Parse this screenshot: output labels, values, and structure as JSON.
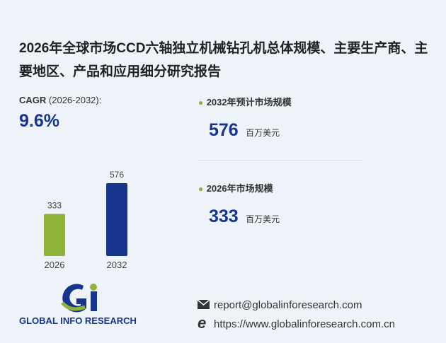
{
  "title": "2026年全球市场CCD六轴独立机械钻孔机总体规模、主要生产商、主要地区、产品和应用细分研究报告",
  "cagr": {
    "label": "CAGR",
    "period": "(2026-2032):",
    "value": "9.6%"
  },
  "chart_data": {
    "type": "bar",
    "categories": [
      "2026",
      "2032"
    ],
    "values": [
      333,
      576
    ],
    "colors": [
      "#8fb339",
      "#17358c"
    ]
  },
  "market": [
    {
      "label": "2032年预计市场规模",
      "unit": "百万美元"
    },
    {
      "label": "2026年市场规模",
      "unit": "百万美元"
    }
  ],
  "logo": "GLOBAL INFO RESEARCH",
  "contact": {
    "email": "report@globalinforesearch.com",
    "url": "https://www.globalinforesearch.com.cn"
  }
}
